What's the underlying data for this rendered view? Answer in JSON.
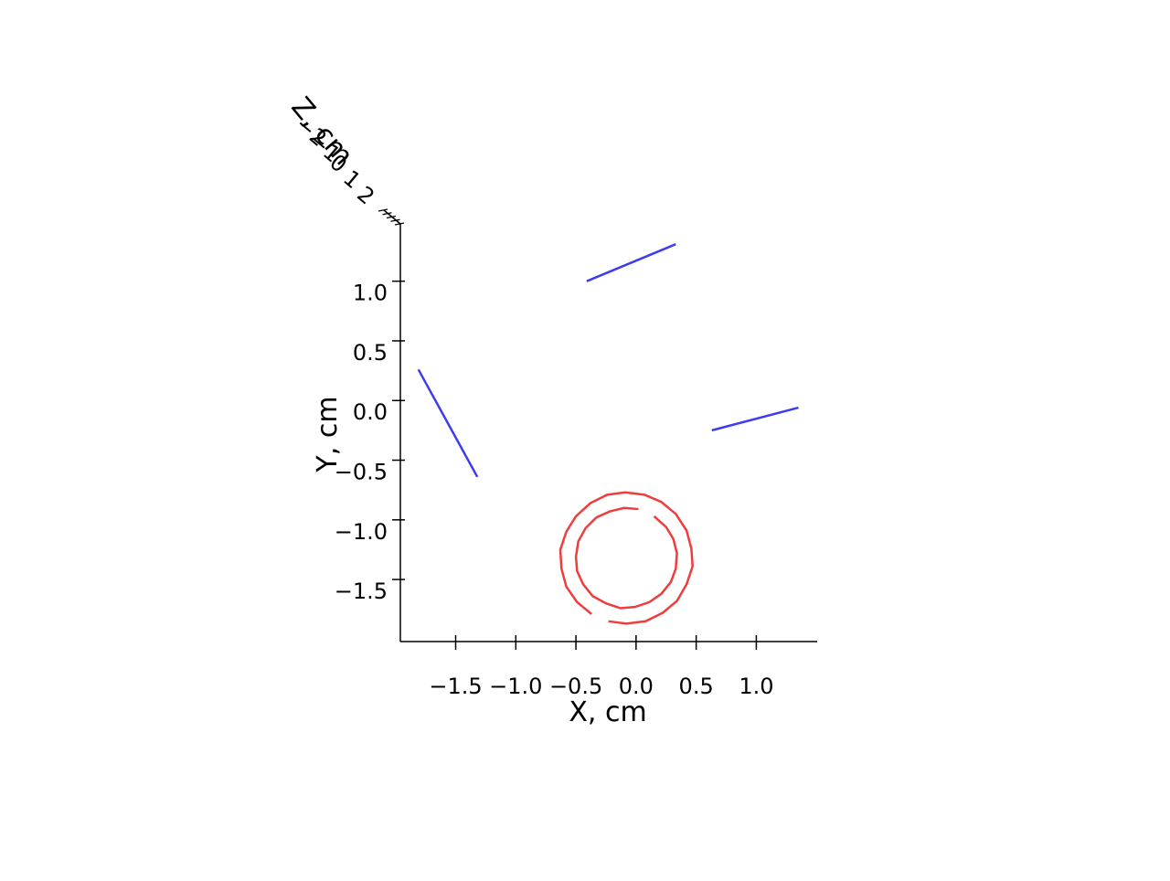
{
  "chart_data": {
    "type": "line",
    "xlabel": "X, cm",
    "ylabel": "Y, cm",
    "zlabel": "Z, cm",
    "xlim": [
      -1.96,
      1.506
    ],
    "xticks": [
      {
        "value": -1.5,
        "label": "−1.5"
      },
      {
        "value": -1.0,
        "label": "−1.0"
      },
      {
        "value": -0.5,
        "label": "−0.5"
      },
      {
        "value": 0.0,
        "label": "0.0"
      },
      {
        "value": 0.5,
        "label": "0.5"
      },
      {
        "value": 1.0,
        "label": "1.0"
      }
    ],
    "ylim": [
      -2.02,
      1.48
    ],
    "yticks": [
      {
        "value": -1.5,
        "label": "−1.5"
      },
      {
        "value": -1.0,
        "label": "−1.0"
      },
      {
        "value": -0.5,
        "label": "−0.5"
      },
      {
        "value": 0.0,
        "label": "0.0"
      },
      {
        "value": 0.5,
        "label": "0.5"
      },
      {
        "value": 1.0,
        "label": "1.0"
      }
    ],
    "zlim": [
      -2,
      2
    ],
    "zticks": [
      {
        "value": -2,
        "label": "−2"
      },
      {
        "value": -1,
        "label": "−1"
      },
      0,
      1,
      2
    ],
    "series": [
      {
        "color": "#3333ee",
        "x": [
          -1.81,
          -1.32
        ],
        "values": [
          0.26,
          -0.64
        ]
      },
      {
        "color": "#3333ee",
        "x": [
          -0.41,
          0.33
        ],
        "values": [
          1.0,
          1.31
        ]
      },
      {
        "color": "#3333ee",
        "x": [
          0.63,
          1.35
        ],
        "values": [
          -0.25,
          -0.06
        ]
      },
      {
        "color": "#ee3333",
        "x": [
          -0.23,
          -0.08,
          0.08,
          0.22,
          0.34,
          0.42,
          0.47,
          0.46,
          0.42,
          0.33,
          0.21,
          0.07,
          -0.09,
          -0.24,
          -0.38,
          -0.5,
          -0.58,
          -0.63,
          -0.62,
          -0.58,
          -0.49,
          -0.37
        ],
        "values": [
          -1.85,
          -1.87,
          -1.85,
          -1.78,
          -1.68,
          -1.54,
          -1.39,
          -1.24,
          -1.09,
          -0.95,
          -0.85,
          -0.79,
          -0.77,
          -0.79,
          -0.86,
          -0.97,
          -1.1,
          -1.25,
          -1.41,
          -1.56,
          -1.69,
          -1.79
        ]
      },
      {
        "color": "#ee3333",
        "x": [
          0.02,
          -0.1,
          -0.22,
          -0.33,
          -0.42,
          -0.48,
          -0.5,
          -0.49,
          -0.44,
          -0.36,
          -0.25,
          -0.13,
          -0.01,
          0.11,
          0.21,
          0.29,
          0.33,
          0.34,
          0.31,
          0.25,
          0.15
        ],
        "values": [
          -0.91,
          -0.9,
          -0.93,
          -0.98,
          -1.07,
          -1.18,
          -1.31,
          -1.43,
          -1.54,
          -1.64,
          -1.7,
          -1.74,
          -1.73,
          -1.69,
          -1.62,
          -1.52,
          -1.41,
          -1.28,
          -1.16,
          -1.06,
          -0.97
        ]
      }
    ]
  }
}
